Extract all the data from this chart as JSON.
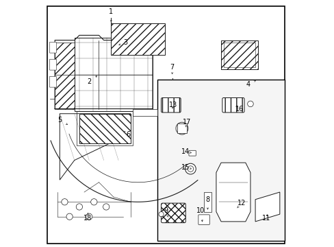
{
  "bg_color": "#ffffff",
  "line_color": "#1a1a1a",
  "fig_width": 4.89,
  "fig_height": 3.6,
  "dpi": 100,
  "labels": {
    "1": [
      0.27,
      0.955,
      0.27,
      0.905
    ],
    "2": [
      0.18,
      0.67,
      0.22,
      0.7
    ],
    "3": [
      0.33,
      0.83,
      0.3,
      0.82
    ],
    "4": [
      0.83,
      0.66,
      0.87,
      0.68
    ],
    "5": [
      0.06,
      0.515,
      0.1,
      0.49
    ],
    "6": [
      0.34,
      0.455,
      0.32,
      0.47
    ],
    "7": [
      0.52,
      0.73,
      0.52,
      0.7
    ],
    "8": [
      0.665,
      0.19,
      0.665,
      0.14
    ],
    "9": [
      0.495,
      0.145,
      0.505,
      0.11
    ],
    "10": [
      0.635,
      0.145,
      0.645,
      0.09
    ],
    "11": [
      0.905,
      0.115,
      0.91,
      0.13
    ],
    "12": [
      0.805,
      0.175,
      0.78,
      0.15
    ],
    "13": [
      0.525,
      0.575,
      0.52,
      0.56
    ],
    "14": [
      0.575,
      0.385,
      0.6,
      0.38
    ],
    "15": [
      0.575,
      0.32,
      0.6,
      0.315
    ],
    "16": [
      0.795,
      0.56,
      0.78,
      0.57
    ],
    "17": [
      0.58,
      0.505,
      0.575,
      0.485
    ],
    "18": [
      0.175,
      0.115,
      0.175,
      0.135
    ]
  }
}
